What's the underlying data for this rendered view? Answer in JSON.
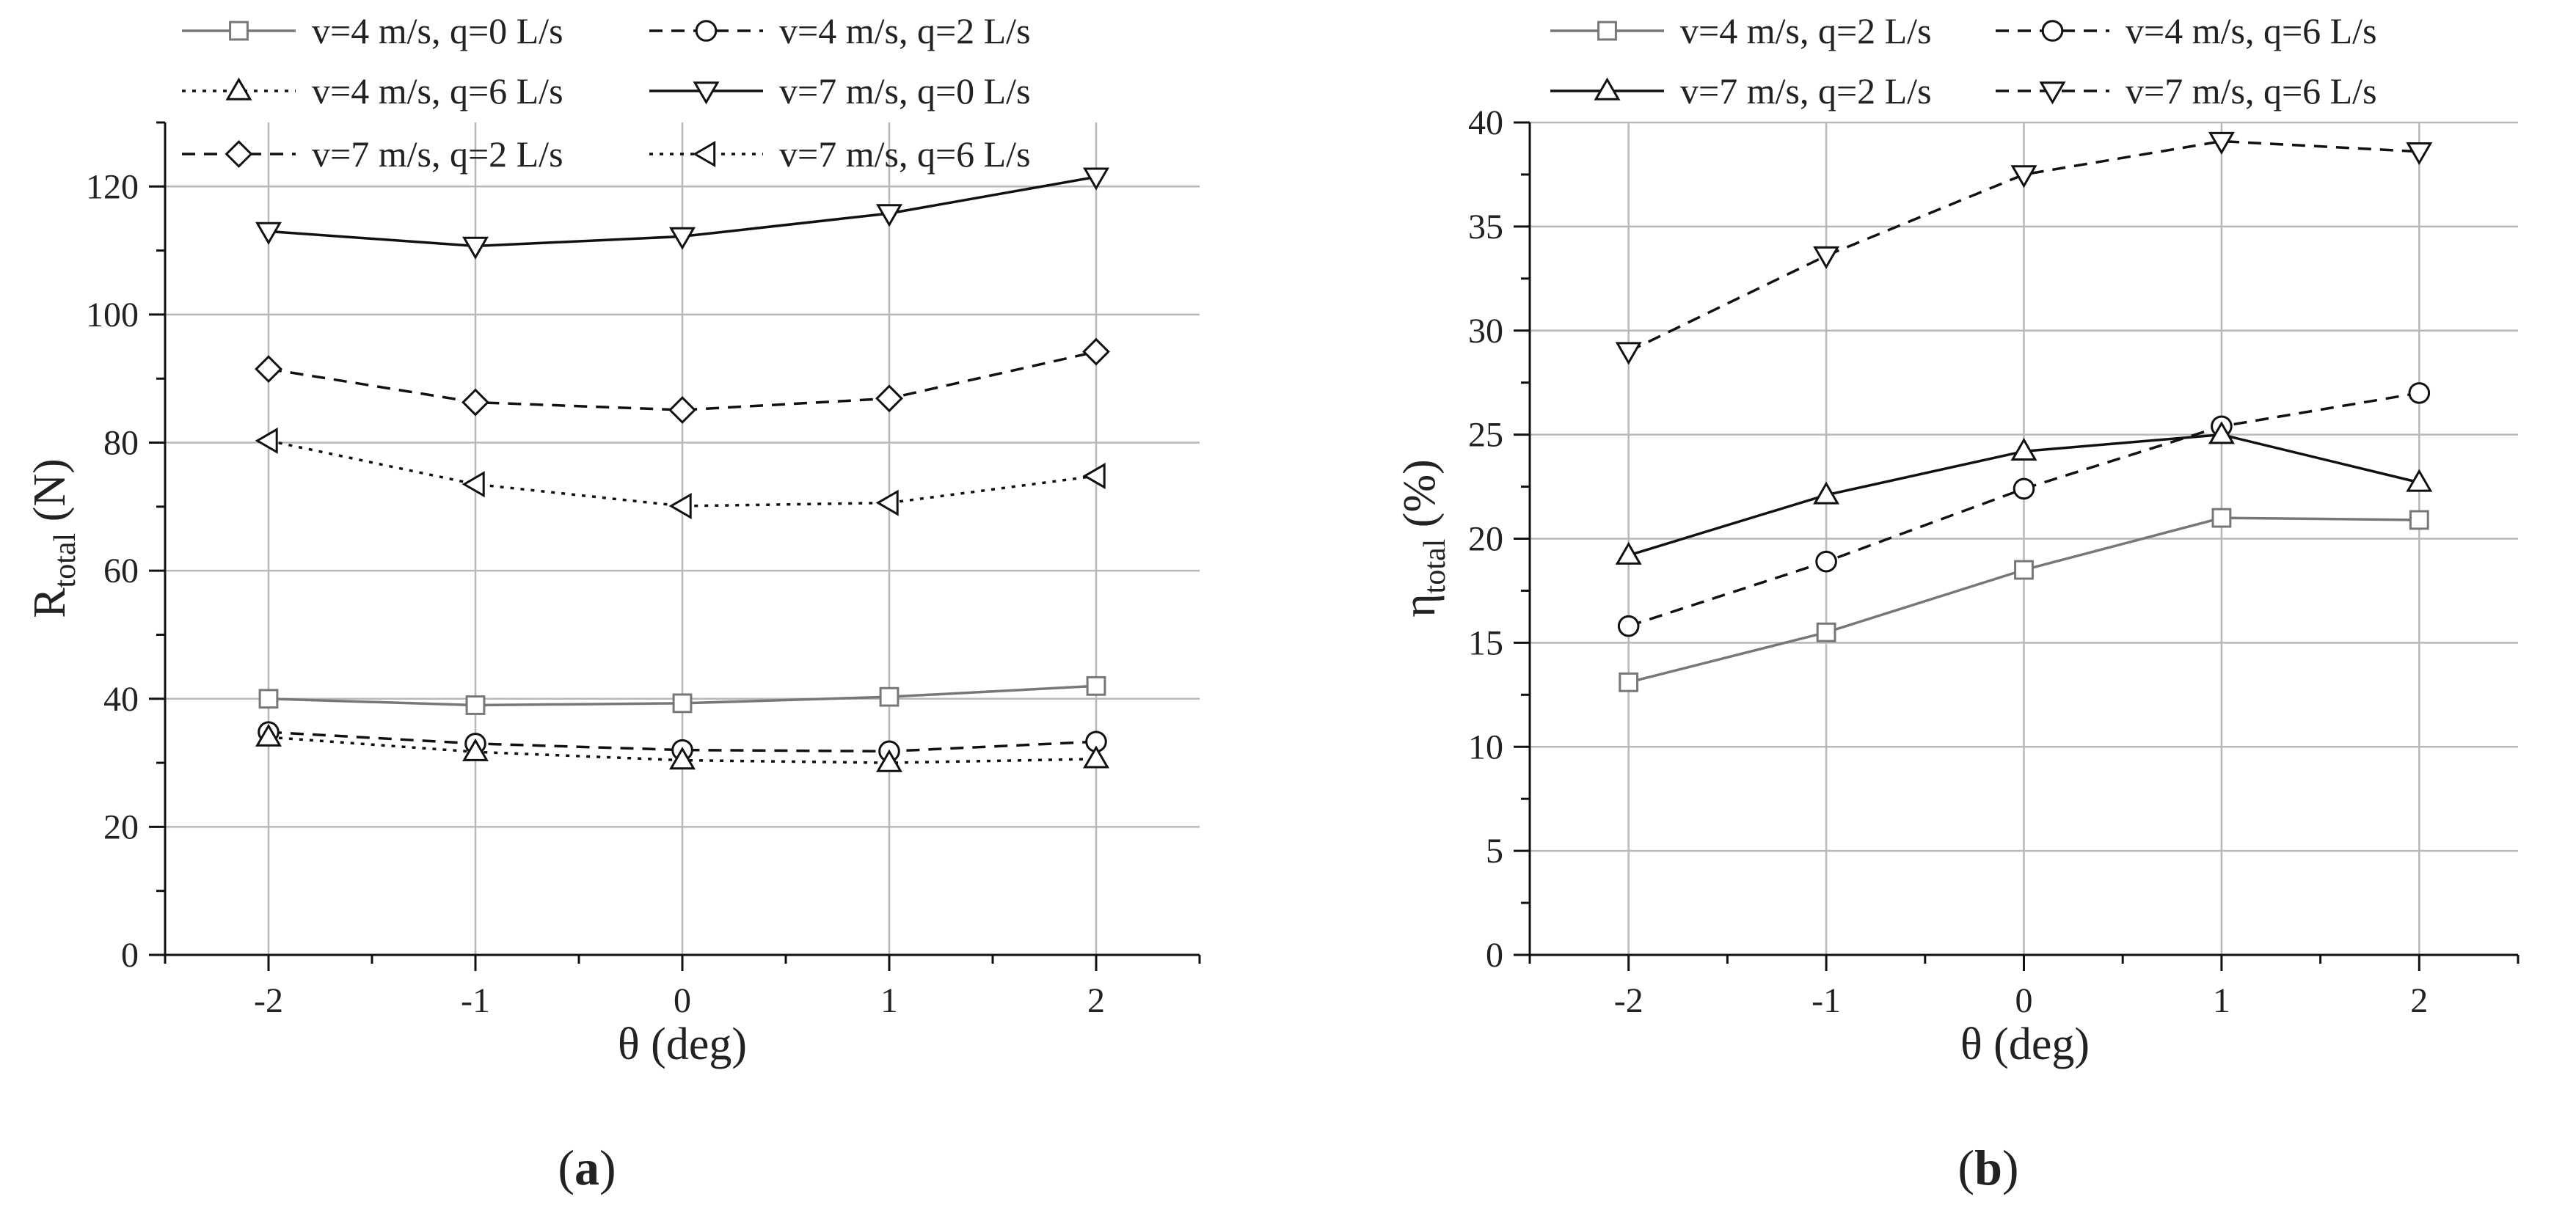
{
  "chart_data": [
    {
      "type": "line",
      "panel_label": "(a)",
      "panel_letter": "a",
      "xlabel": "θ (deg)",
      "ylabel_main": "R",
      "ylabel_sub": "total",
      "ylabel_unit": " (N)",
      "xlim": [
        -2.5,
        2.5
      ],
      "ylim": [
        0,
        130
      ],
      "x_ticks": [
        -2,
        -1,
        0,
        1,
        2
      ],
      "x_tick_labels": [
        "-2",
        "-1",
        "0",
        "1",
        "2"
      ],
      "y_ticks": [
        0,
        20,
        40,
        60,
        80,
        100,
        120
      ],
      "y_tick_labels": [
        "0",
        "20",
        "40",
        "60",
        "80",
        "100",
        "120"
      ],
      "grid": true,
      "legend_position": "top",
      "x": [
        -2,
        -1,
        0,
        1,
        2
      ],
      "series": [
        {
          "name": "v=4 m/s, q=0 L/s",
          "values": [
            40.0,
            39.0,
            39.3,
            40.3,
            42.0
          ],
          "color": "#777777",
          "dash": "solid",
          "marker": "square"
        },
        {
          "name": "v=4 m/s, q=2 L/s",
          "values": [
            34.8,
            33.0,
            32.0,
            31.8,
            33.3
          ],
          "color": "#111111",
          "dash": "dashed",
          "marker": "circle"
        },
        {
          "name": "v=4 m/s, q=6 L/s",
          "values": [
            34.0,
            31.7,
            30.4,
            30.0,
            30.6
          ],
          "color": "#111111",
          "dash": "dotted",
          "marker": "triangle-up"
        },
        {
          "name": "v=7 m/s, q=0 L/s",
          "values": [
            113.0,
            110.7,
            112.2,
            115.8,
            121.5
          ],
          "color": "#111111",
          "dash": "solid",
          "marker": "triangle-down"
        },
        {
          "name": "v=7 m/s, q=2 L/s",
          "values": [
            91.5,
            86.3,
            85.1,
            86.9,
            94.2
          ],
          "color": "#111111",
          "dash": "dashed",
          "marker": "diamond"
        },
        {
          "name": "v=7 m/s, q=6 L/s",
          "values": [
            80.3,
            73.5,
            70.1,
            70.6,
            74.8
          ],
          "color": "#111111",
          "dash": "dotted",
          "marker": "triangle-left"
        }
      ]
    },
    {
      "type": "line",
      "panel_label": "(b)",
      "panel_letter": "b",
      "xlabel": "θ (deg)",
      "ylabel_main": "η",
      "ylabel_sub": "total",
      "ylabel_unit": " (%)",
      "xlim": [
        -2.5,
        2.5
      ],
      "ylim": [
        0,
        40
      ],
      "x_ticks": [
        -2,
        -1,
        0,
        1,
        2
      ],
      "x_tick_labels": [
        "-2",
        "-1",
        "0",
        "1",
        "2"
      ],
      "y_ticks": [
        0,
        5,
        10,
        15,
        20,
        25,
        30,
        35,
        40
      ],
      "y_tick_labels": [
        "0",
        "5",
        "10",
        "15",
        "20",
        "25",
        "30",
        "35",
        "40"
      ],
      "grid": true,
      "legend_position": "top",
      "x": [
        -2,
        -1,
        0,
        1,
        2
      ],
      "series": [
        {
          "name": "v=4 m/s, q=2 L/s",
          "values": [
            13.1,
            15.5,
            18.5,
            21.0,
            20.9
          ],
          "color": "#777777",
          "dash": "solid",
          "marker": "square"
        },
        {
          "name": "v=4 m/s, q=6 L/s",
          "values": [
            15.8,
            18.9,
            22.4,
            25.4,
            27.0
          ],
          "color": "#111111",
          "dash": "dashed",
          "marker": "circle"
        },
        {
          "name": "v=7 m/s, q=2 L/s",
          "values": [
            19.2,
            22.1,
            24.2,
            25.0,
            22.7
          ],
          "color": "#111111",
          "dash": "solid",
          "marker": "triangle-up"
        },
        {
          "name": "v=7 m/s, q=6 L/s",
          "values": [
            29.0,
            33.6,
            37.5,
            39.1,
            38.6
          ],
          "color": "#111111",
          "dash": "dashed",
          "marker": "triangle-down"
        }
      ]
    }
  ]
}
